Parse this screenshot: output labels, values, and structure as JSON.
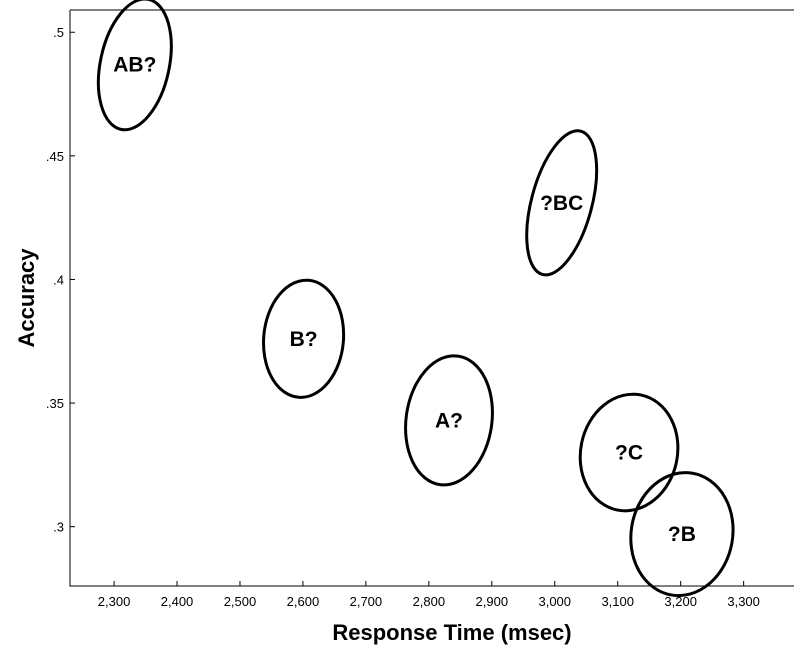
{
  "chart_data": {
    "type": "scatter",
    "title": "",
    "xlabel": "Response Time (msec)",
    "ylabel": "Accuracy",
    "xlim": [
      2230,
      3380
    ],
    "ylim": [
      0.276,
      0.509
    ],
    "x_ticks": [
      {
        "value": 2300,
        "label": "2,300"
      },
      {
        "value": 2400,
        "label": "2,400"
      },
      {
        "value": 2500,
        "label": "2,500"
      },
      {
        "value": 2600,
        "label": "2,600"
      },
      {
        "value": 2700,
        "label": "2,700"
      },
      {
        "value": 2800,
        "label": "2,800"
      },
      {
        "value": 2900,
        "label": "2,900"
      },
      {
        "value": 3000,
        "label": "3,000"
      },
      {
        "value": 3100,
        "label": "3,100"
      },
      {
        "value": 3200,
        "label": "3,200"
      },
      {
        "value": 3300,
        "label": "3,300"
      }
    ],
    "y_ticks": [
      {
        "value": 0.3,
        "label": ".3"
      },
      {
        "value": 0.35,
        "label": ".35"
      },
      {
        "value": 0.4,
        "label": ".4"
      },
      {
        "value": 0.45,
        "label": ".45"
      },
      {
        "value": 0.5,
        "label": ".5"
      }
    ],
    "grid": false,
    "points": [
      {
        "label": "AB?",
        "x": 2333,
        "y": 0.487,
        "rx": 114,
        "ry": 0.0215,
        "angle": 12
      },
      {
        "label": "?BC",
        "x": 3011,
        "y": 0.431,
        "rx": 100,
        "ry": 0.024,
        "angle": 15
      },
      {
        "label": "B?",
        "x": 2601,
        "y": 0.376,
        "rx": 132,
        "ry": 0.019,
        "angle": 5
      },
      {
        "label": "A?",
        "x": 2832,
        "y": 0.343,
        "rx": 142,
        "ry": 0.021,
        "angle": 8
      },
      {
        "label": "?C",
        "x": 3118,
        "y": 0.33,
        "rx": 160,
        "ry": 0.019,
        "angle": 12
      },
      {
        "label": "?B",
        "x": 3202,
        "y": 0.297,
        "rx": 168,
        "ry": 0.02,
        "angle": 10
      }
    ]
  }
}
